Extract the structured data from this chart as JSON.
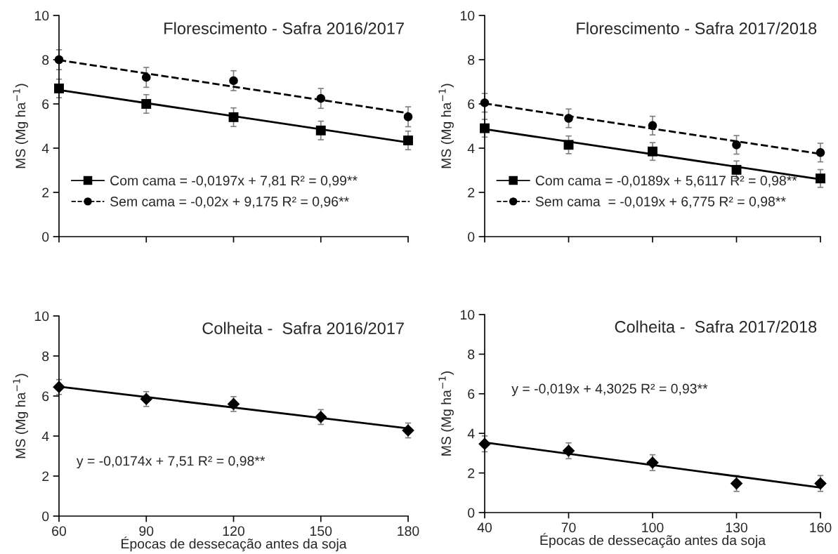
{
  "chart_data": [
    {
      "type": "scatter",
      "title": "Florescimento - Safra 2016/2017",
      "ylabel": "MS (Mg ha$^{−1}$)",
      "xlim": [
        60,
        180
      ],
      "xticks": [
        60,
        90,
        120,
        150,
        180
      ],
      "ylim": [
        0,
        10
      ],
      "yticks": [
        0,
        2,
        4,
        6,
        8,
        10
      ],
      "tick_labels": "y",
      "grid": false,
      "legend": "bottom left",
      "series": [
        {
          "name": "Com cama = -0,0197x + 7,81 R² = 0,99**",
          "color": "#000000",
          "marker": "square",
          "x": [
            60,
            90,
            120,
            150,
            180
          ],
          "values": [
            6.7,
            6.0,
            5.4,
            4.8,
            4.35
          ],
          "errors": [
            0.42,
            0.42,
            0.42,
            0.42,
            0.42
          ]
        },
        {
          "type": "line",
          "color": "#000000",
          "line_style": "solid",
          "x": [
            60,
            180
          ],
          "values": [
            6.63,
            4.26
          ]
        },
        {
          "name": "Sem cama = -0,02x + 9,175 R² = 0,96**",
          "color": "#000000",
          "marker": "circle",
          "x": [
            60,
            90,
            120,
            150,
            180
          ],
          "values": [
            8.0,
            7.2,
            7.05,
            6.25,
            5.42
          ],
          "errors": [
            0.45,
            0.45,
            0.45,
            0.45,
            0.45
          ]
        },
        {
          "type": "line",
          "color": "#000000",
          "line_style": "dashed",
          "x": [
            60,
            180
          ],
          "values": [
            7.98,
            5.58
          ]
        }
      ]
    },
    {
      "type": "scatter",
      "title": "Florescimento - Safra 2017/2018",
      "ylabel": "MS (Mg ha$^{−1}$)",
      "xlim": [
        40,
        160
      ],
      "xticks": [
        40,
        70,
        100,
        130,
        160
      ],
      "ylim": [
        0,
        10
      ],
      "yticks": [
        0,
        2,
        4,
        6,
        8,
        10
      ],
      "tick_labels": "y",
      "grid": false,
      "legend": "bottom left",
      "series": [
        {
          "name": "Com cama = -0,0189x + 5,6117 R² = 0,98**",
          "color": "#000000",
          "marker": "square",
          "x": [
            40,
            70,
            100,
            130,
            160
          ],
          "values": [
            4.9,
            4.15,
            3.85,
            3.02,
            2.63
          ],
          "errors": [
            0.4,
            0.4,
            0.4,
            0.4,
            0.4
          ]
        },
        {
          "type": "line",
          "color": "#000000",
          "line_style": "solid",
          "x": [
            40,
            160
          ],
          "values": [
            4.86,
            2.59
          ]
        },
        {
          "name": "Sem cama  = -0,019x + 6,775 R² = 0,98**",
          "color": "#000000",
          "marker": "circle",
          "x": [
            40,
            70,
            100,
            130,
            160
          ],
          "values": [
            6.05,
            5.35,
            5.02,
            4.15,
            3.8
          ],
          "errors": [
            0.42,
            0.42,
            0.42,
            0.42,
            0.42
          ]
        },
        {
          "type": "line",
          "color": "#000000",
          "line_style": "dashed",
          "x": [
            40,
            160
          ],
          "values": [
            6.02,
            3.74
          ]
        }
      ]
    },
    {
      "type": "scatter",
      "title": "Colheita -  Safra 2016/2017",
      "ylabel": "MS (Mg ha$^{−1}$)",
      "xlabel": "Épocas de dessecação antes da soja",
      "xlim": [
        60,
        180
      ],
      "xticks": [
        60,
        90,
        120,
        150,
        180
      ],
      "ylim": [
        0,
        10
      ],
      "yticks": [
        0,
        2,
        4,
        6,
        8,
        10
      ],
      "grid": false,
      "annotations": [
        "y = -0,0174x + 7,51 R² = 0,98**"
      ],
      "series": [
        {
          "color": "#000000",
          "marker": "diamond",
          "x": [
            60,
            90,
            120,
            150,
            180
          ],
          "values": [
            6.45,
            5.85,
            5.6,
            4.95,
            4.28
          ],
          "errors": [
            0.37,
            0.37,
            0.37,
            0.37,
            0.37
          ]
        },
        {
          "type": "line",
          "color": "#000000",
          "line_style": "solid",
          "x": [
            60,
            180
          ],
          "values": [
            6.47,
            4.38
          ]
        }
      ]
    },
    {
      "type": "scatter",
      "title": "Colheita -  Safra 2017/2018",
      "ylabel": "MS (Mg ha$^{−1}$)",
      "xlabel": "Épocas de dessecação antes da soja",
      "xlim": [
        40,
        160
      ],
      "xticks": [
        40,
        70,
        100,
        130,
        160
      ],
      "ylim": [
        0,
        10
      ],
      "yticks": [
        0,
        2,
        4,
        6,
        8,
        10
      ],
      "grid": false,
      "annotations": [
        "y = -0,019x + 4,3025 R² = 0,93**"
      ],
      "series": [
        {
          "color": "#000000",
          "marker": "diamond",
          "x": [
            40,
            70,
            100,
            130,
            160
          ],
          "values": [
            3.47,
            3.12,
            2.52,
            1.47,
            1.47
          ],
          "errors": [
            0.4,
            0.4,
            0.4,
            0.4,
            0.4
          ]
        },
        {
          "type": "line",
          "color": "#000000",
          "line_style": "solid",
          "x": [
            40,
            160
          ],
          "values": [
            3.54,
            1.26
          ]
        }
      ]
    }
  ]
}
